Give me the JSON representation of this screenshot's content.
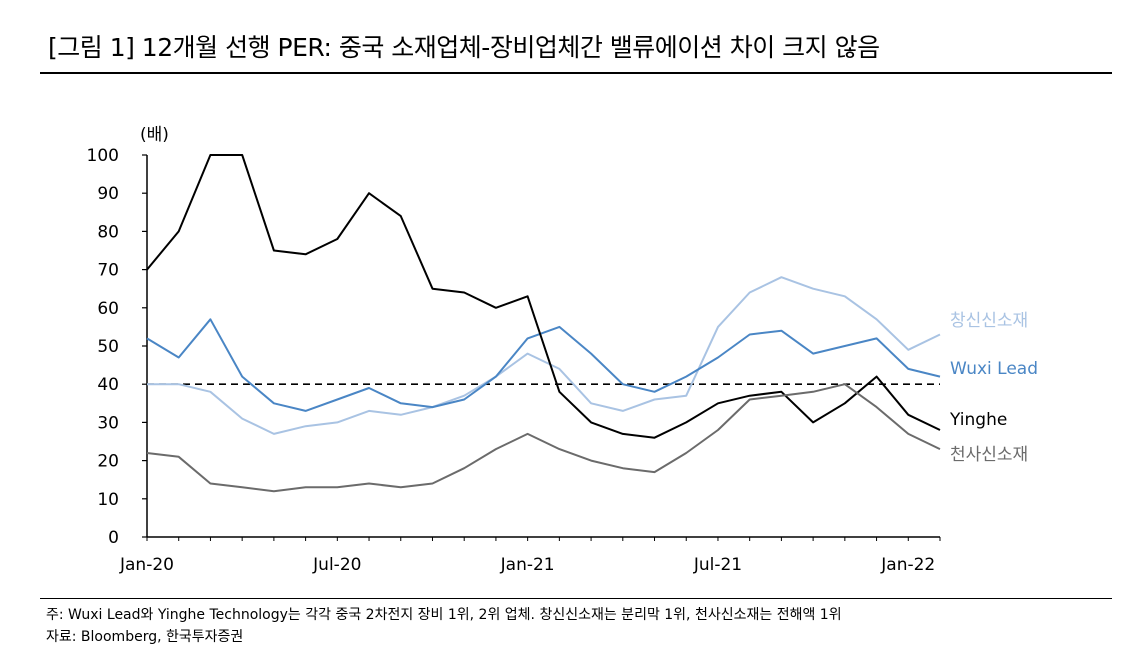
{
  "title": "[그림 1] 12개월 선행 PER: 중국 소재업체-장비업체간 밸류에이션 차이 크지 않음",
  "notes": {
    "footnote": "주: Wuxi Lead와 Yinghe Technology는 각각 중국 2차전지 장비 1위, 2위 업체. 창신신소재는 분리막 1위, 천사신소재는 전해액 1위",
    "source": "자료: Bloomberg, 한국투자증권"
  },
  "chart_data": {
    "type": "line",
    "title": "12개월 선행 PER",
    "ylabel": "(배)",
    "ylim": [
      0,
      100
    ],
    "yticks": [
      0,
      10,
      20,
      30,
      40,
      50,
      60,
      70,
      80,
      90,
      100
    ],
    "xlim": [
      "2020-01",
      "2022-02"
    ],
    "xtick_labels": [
      "Jan-20",
      "Jul-20",
      "Jan-21",
      "Jul-21",
      "Jan-22"
    ],
    "reference_line": {
      "y": 40,
      "style": "dashed"
    },
    "series": [
      {
        "name": "창신신소재",
        "color": "#a9c3e3",
        "x": [
          "2020-01",
          "2020-02",
          "2020-03",
          "2020-04",
          "2020-05",
          "2020-06",
          "2020-07",
          "2020-08",
          "2020-09",
          "2020-10",
          "2020-11",
          "2020-12",
          "2021-01",
          "2021-02",
          "2021-03",
          "2021-04",
          "2021-05",
          "2021-06",
          "2021-07",
          "2021-08",
          "2021-09",
          "2021-10",
          "2021-11",
          "2021-12",
          "2022-01",
          "2022-02"
        ],
        "values": [
          40,
          40,
          38,
          31,
          27,
          29,
          30,
          33,
          32,
          34,
          37,
          42,
          48,
          44,
          35,
          33,
          36,
          37,
          55,
          64,
          68,
          65,
          63,
          57,
          49,
          53
        ]
      },
      {
        "name": "Wuxi Lead",
        "color": "#4a86c5",
        "x": [
          "2020-01",
          "2020-02",
          "2020-03",
          "2020-04",
          "2020-05",
          "2020-06",
          "2020-07",
          "2020-08",
          "2020-09",
          "2020-10",
          "2020-11",
          "2020-12",
          "2021-01",
          "2021-02",
          "2021-03",
          "2021-04",
          "2021-05",
          "2021-06",
          "2021-07",
          "2021-08",
          "2021-09",
          "2021-10",
          "2021-11",
          "2021-12",
          "2022-01",
          "2022-02"
        ],
        "values": [
          52,
          47,
          57,
          42,
          35,
          33,
          36,
          39,
          35,
          34,
          36,
          42,
          52,
          55,
          48,
          40,
          38,
          42,
          47,
          53,
          54,
          48,
          50,
          52,
          44,
          42
        ]
      },
      {
        "name": "Yinghe",
        "color": "#000000",
        "x": [
          "2020-01",
          "2020-02",
          "2020-03",
          "2020-04",
          "2020-05",
          "2020-06",
          "2020-07",
          "2020-08",
          "2020-09",
          "2020-10",
          "2020-11",
          "2020-12",
          "2021-01",
          "2021-02",
          "2021-03",
          "2021-04",
          "2021-05",
          "2021-06",
          "2021-07",
          "2021-08",
          "2021-09",
          "2021-10",
          "2021-11",
          "2021-12",
          "2022-01",
          "2022-02"
        ],
        "values": [
          70,
          80,
          100,
          100,
          75,
          74,
          78,
          90,
          84,
          65,
          64,
          60,
          63,
          38,
          30,
          27,
          26,
          30,
          35,
          37,
          38,
          30,
          35,
          42,
          32,
          28
        ]
      },
      {
        "name": "천사신소재",
        "color": "#6b6b6b",
        "x": [
          "2020-01",
          "2020-02",
          "2020-03",
          "2020-04",
          "2020-05",
          "2020-06",
          "2020-07",
          "2020-08",
          "2020-09",
          "2020-10",
          "2020-11",
          "2020-12",
          "2021-01",
          "2021-02",
          "2021-03",
          "2021-04",
          "2021-05",
          "2021-06",
          "2021-07",
          "2021-08",
          "2021-09",
          "2021-10",
          "2021-11",
          "2021-12",
          "2022-01",
          "2022-02"
        ],
        "values": [
          22,
          21,
          14,
          13,
          12,
          13,
          13,
          14,
          13,
          14,
          18,
          23,
          27,
          23,
          20,
          18,
          17,
          22,
          28,
          36,
          37,
          38,
          40,
          34,
          27,
          23
        ]
      }
    ]
  }
}
